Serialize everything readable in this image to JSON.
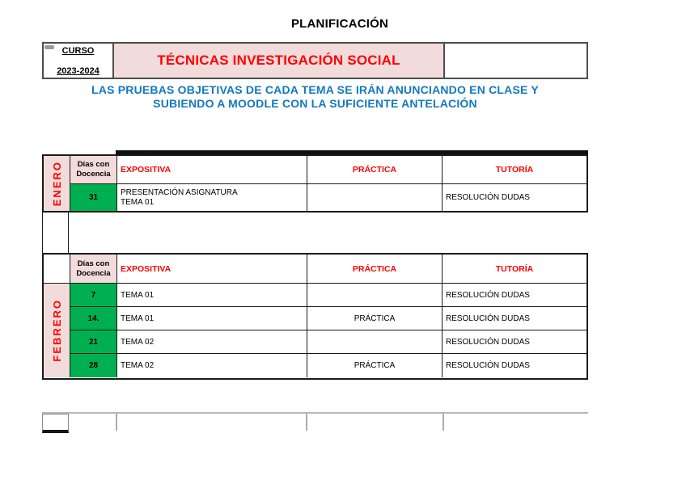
{
  "page": {
    "title": "PLANIFICACIÓN"
  },
  "course_header": {
    "curso_label": "CURSO",
    "curso_year": "2023-2024",
    "title": "TÉCNICAS INVESTIGACIÓN SOCIAL"
  },
  "notice": {
    "line1": "LAS PRUEBAS OBJETIVAS DE CADA TEMA SE IRÁN ANUNCIANDO EN CLASE Y",
    "line2": "SUBIENDO A MOODLE CON LA SUFICIENTE ANTELACIÓN"
  },
  "table_headers": {
    "days_line1": "Días con",
    "days_line2": "Docencia",
    "expositiva": "EXPOSITIVA",
    "practica": "PRÁCTICA",
    "tutoria": "TUTORÍA"
  },
  "months": [
    {
      "name": "ENERO",
      "rows": [
        {
          "day": "31",
          "expositiva_line1": "PRESENTACIÓN ASIGNATURA",
          "expositiva_line2": "TEMA 01",
          "practica": "",
          "tutoria": "RESOLUCIÓN DUDAS"
        }
      ]
    },
    {
      "name": "FEBRERO",
      "rows": [
        {
          "day": "7",
          "expositiva": "TEMA 01",
          "practica": "",
          "tutoria": "RESOLUCIÓN DUDAS"
        },
        {
          "day": "14.",
          "expositiva": "TEMA 01",
          "practica": "PRÁCTICA",
          "tutoria": "RESOLUCIÓN DUDAS"
        },
        {
          "day": "21",
          "expositiva": "TEMA 02",
          "practica": "",
          "tutoria": "RESOLUCIÓN DUDAS"
        },
        {
          "day": "28",
          "expositiva": "TEMA 02",
          "practica": "PRÁCTICA",
          "tutoria": "RESOLUCIÓN DUDAS"
        }
      ]
    }
  ],
  "colors": {
    "header_fill_pink": "#F2DCDB",
    "day_fill_green": "#00B050",
    "heading_red": "#FF0000",
    "notice_blue": "#1478BE"
  }
}
